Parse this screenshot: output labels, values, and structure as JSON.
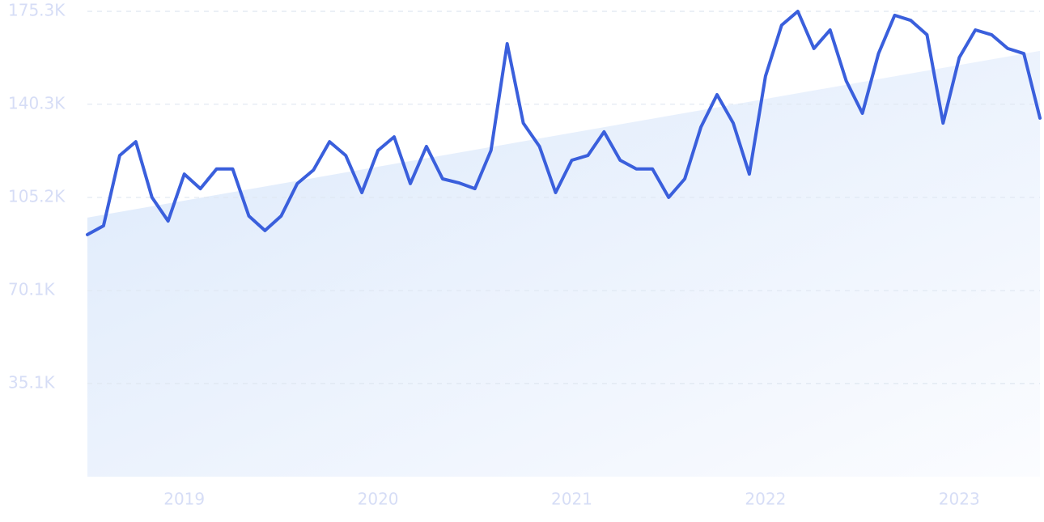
{
  "chart_data": {
    "type": "line",
    "categories": [
      null,
      null,
      null,
      null,
      null,
      null,
      "2019",
      null,
      null,
      null,
      null,
      null,
      null,
      null,
      null,
      null,
      null,
      null,
      "2020",
      null,
      null,
      null,
      null,
      null,
      null,
      null,
      null,
      null,
      null,
      null,
      "2021",
      null,
      null,
      null,
      null,
      null,
      null,
      null,
      null,
      null,
      null,
      null,
      "2022",
      null,
      null,
      null,
      null,
      null,
      null,
      null,
      null,
      null,
      null,
      null,
      "2023",
      null,
      null,
      null,
      null,
      null
    ],
    "values": [
      91200,
      94500,
      121000,
      126200,
      105200,
      96300,
      114000,
      108500,
      115900,
      115900,
      98200,
      92700,
      98200,
      110400,
      115500,
      126200,
      121000,
      107000,
      122900,
      128000,
      110400,
      124400,
      112200,
      110700,
      108500,
      122900,
      163100,
      133200,
      124400,
      107000,
      119200,
      121000,
      129900,
      119200,
      115900,
      115900,
      105200,
      112200,
      131700,
      143900,
      133200,
      114000,
      150900,
      170100,
      175300,
      161300,
      168300,
      149100,
      136900,
      159400,
      173800,
      171900,
      166500,
      133200,
      157900,
      168300,
      166500,
      161300,
      159400,
      135100
    ],
    "color": "#3a5fdc",
    "trend": [
      97600,
      160400
    ],
    "trend_color": "#dbe8fa",
    "ylim": [
      0,
      175300
    ],
    "yticks": [
      {
        "value": 35100,
        "label": "35.1K"
      },
      {
        "value": 70100,
        "label": "70.1K"
      },
      {
        "value": 105200,
        "label": "105.2K"
      },
      {
        "value": 140300,
        "label": "140.3K"
      },
      {
        "value": 175300,
        "label": "175.3K"
      }
    ],
    "grid": true
  }
}
